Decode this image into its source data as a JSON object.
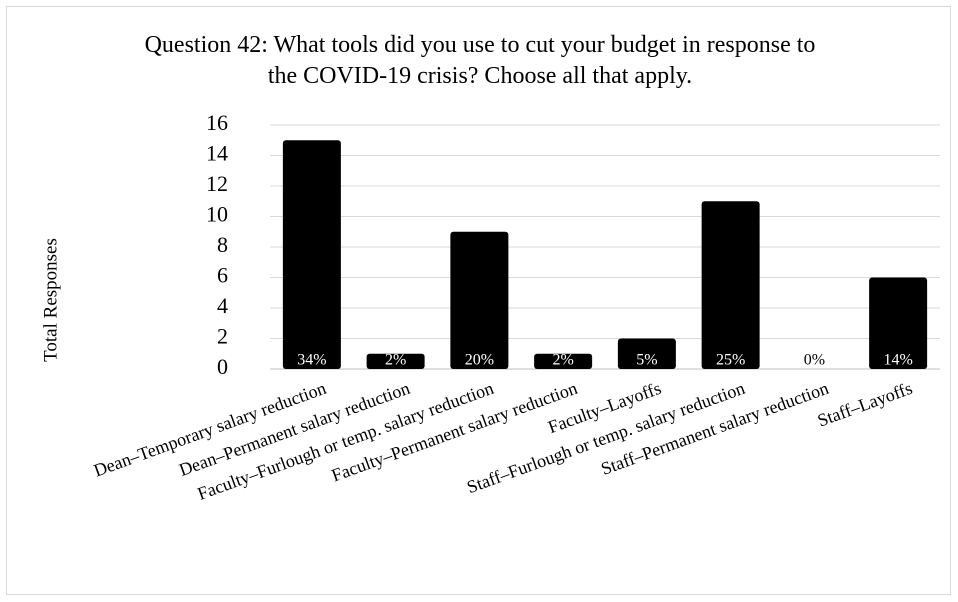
{
  "chart_data": {
    "type": "bar",
    "title": "Question 42: What tools did you use to cut your budget in response to the COVID-19 crisis? Choose all that apply.",
    "y_label": "Total Responses",
    "categories": [
      "Dean–Temporary salary reduction",
      "Dean–Permanent salary reduction",
      "Faculty–Furlough or temp. salary reduction",
      "Faculty–Permanent salary reduction",
      "Faculty–Layoffs",
      "Staff–Furlough or temp. salary reduction",
      "Staff–Permanent salary reduction",
      "Staff–Layoffs"
    ],
    "values": [
      15,
      1,
      9,
      1,
      2,
      11,
      0,
      6
    ],
    "share_labels": [
      "34%",
      "2%",
      "20%",
      "2%",
      "5%",
      "25%",
      "0%",
      "14%"
    ],
    "color": "#000000",
    "ylim": [
      0,
      16
    ],
    "yticks": [
      0,
      2,
      4,
      6,
      8,
      10,
      12,
      14,
      16
    ],
    "grid": true
  }
}
